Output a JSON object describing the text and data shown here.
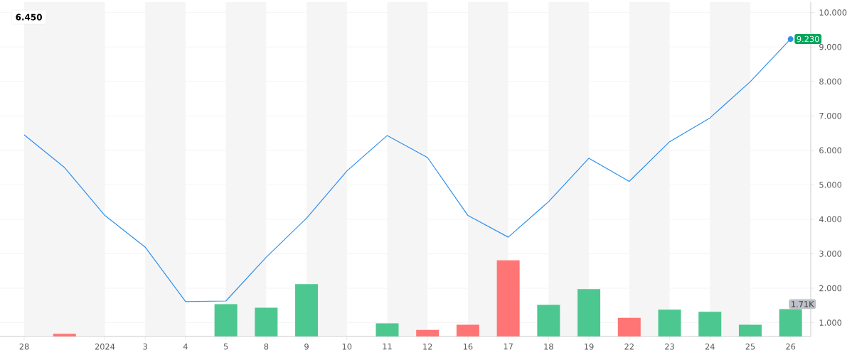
{
  "chart_data": [
    {
      "type": "line",
      "categories": [
        "28",
        null,
        "2024",
        "3",
        "4",
        "5",
        "8",
        "9",
        "10",
        "11",
        "12",
        "16",
        "17",
        "18",
        "19",
        "22",
        "23",
        "24",
        "25",
        "26"
      ],
      "series": [
        {
          "color": "#2d8fef",
          "values": [
            6.45,
            5.5,
            4.11,
            3.19,
            1.61,
            1.63,
            2.9,
            4.03,
            5.4,
            6.43,
            5.79,
            4.11,
            3.48,
            4.51,
            5.77,
            5.1,
            6.25,
            6.94,
            7.99,
            9.23
          ],
          "value_labels": [
            null,
            null,
            null,
            null,
            null,
            null,
            null,
            null,
            null,
            null,
            null,
            null,
            null,
            null,
            null,
            null,
            null,
            null,
            null,
            "9.230"
          ]
        }
      ],
      "ylim": [
        0.6,
        10.3
      ],
      "yticks": [
        {
          "value": 1,
          "label": "1.000"
        },
        {
          "value": 2,
          "label": "2.000"
        },
        {
          "value": 3,
          "label": "3.000"
        },
        {
          "value": 4,
          "label": "4.000"
        },
        {
          "value": 5,
          "label": "5.000"
        },
        {
          "value": 6,
          "label": "6.000"
        },
        {
          "value": 7,
          "label": "7.000"
        },
        {
          "value": 8,
          "label": "8.000"
        },
        {
          "value": 9,
          "label": "9.000"
        },
        {
          "value": 10,
          "label": "10.000"
        }
      ],
      "grid": "y",
      "bands": [
        {
          "axis": "x",
          "from": "28",
          "to": "2024",
          "color": "#f5f5f5"
        },
        {
          "axis": "x",
          "from": "3",
          "to": "4",
          "color": "#f5f5f5"
        },
        {
          "axis": "x",
          "from": "5",
          "to": "8",
          "color": "#f5f5f5"
        },
        {
          "axis": "x",
          "from": "9",
          "to": "10",
          "color": "#f5f5f5"
        },
        {
          "axis": "x",
          "from": "11",
          "to": "12",
          "color": "#f5f5f5"
        },
        {
          "axis": "x",
          "from": "16",
          "to": "17",
          "color": "#f5f5f5"
        },
        {
          "axis": "x",
          "from": "18",
          "to": "19",
          "color": "#f5f5f5"
        },
        {
          "axis": "x",
          "from": "22",
          "to": "23",
          "color": "#f5f5f5"
        },
        {
          "axis": "x",
          "from": "24",
          "to": "25",
          "color": "#f5f5f5"
        }
      ],
      "annotations": [
        "6.450"
      ]
    },
    {
      "type": "bar",
      "ylim": [
        0,
        20.9
      ],
      "tick_labels": false,
      "categories": [
        "28",
        null,
        "2024",
        "3",
        "4",
        "5",
        "8",
        "9",
        "10",
        "11",
        "12",
        "16",
        "17",
        "18",
        "19",
        "22",
        "23",
        "24",
        "25",
        "26"
      ],
      "series": [
        {
          "values": [
            null,
            0.17,
            null,
            null,
            null,
            2.02,
            1.8,
            3.27,
            null,
            0.82,
            0.41,
            0.73,
            4.76,
            1.98,
            2.96,
            1.16,
            1.68,
            1.54,
            0.73,
            1.71
          ],
          "colors": [
            null,
            "#ff7474",
            null,
            null,
            null,
            "#4cc790",
            "#4cc790",
            "#4cc790",
            null,
            "#4cc790",
            "#ff7474",
            "#ff7474",
            "#ff7474",
            "#4cc790",
            "#4cc790",
            "#ff7474",
            "#4cc790",
            "#4cc790",
            "#4cc790",
            "#4cc790"
          ],
          "value_labels": [
            null,
            null,
            null,
            null,
            null,
            null,
            null,
            null,
            null,
            null,
            null,
            null,
            null,
            null,
            null,
            null,
            null,
            null,
            null,
            "1.71K"
          ]
        }
      ]
    }
  ]
}
